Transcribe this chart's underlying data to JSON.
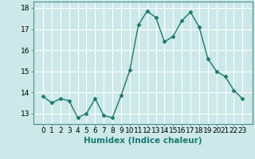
{
  "xlabel": "Humidex (Indice chaleur)",
  "x_values": [
    0,
    1,
    2,
    3,
    4,
    5,
    6,
    7,
    8,
    9,
    10,
    11,
    12,
    13,
    14,
    15,
    16,
    17,
    18,
    19,
    20,
    21,
    22,
    23
  ],
  "y_values": [
    13.8,
    13.5,
    13.7,
    13.6,
    12.8,
    13.0,
    13.7,
    12.9,
    12.8,
    13.85,
    15.05,
    17.2,
    17.85,
    17.55,
    16.4,
    16.65,
    17.4,
    17.8,
    17.1,
    15.6,
    15.0,
    14.75,
    14.1,
    13.7
  ],
  "line_color": "#1a7a6e",
  "marker": "D",
  "marker_size": 2.5,
  "bg_color": "#cce8e8",
  "plot_bg_color": "#cce8e8",
  "grid_color": "#ffffff",
  "ylim": [
    12.5,
    18.3
  ],
  "yticks": [
    13,
    14,
    15,
    16,
    17,
    18
  ],
  "xticks": [
    0,
    1,
    2,
    3,
    4,
    5,
    6,
    7,
    8,
    9,
    10,
    11,
    12,
    13,
    14,
    15,
    16,
    17,
    18,
    19,
    20,
    21,
    22,
    23
  ],
  "xlabel_fontsize": 7.5,
  "tick_fontsize": 6.5,
  "line_width": 1.0
}
